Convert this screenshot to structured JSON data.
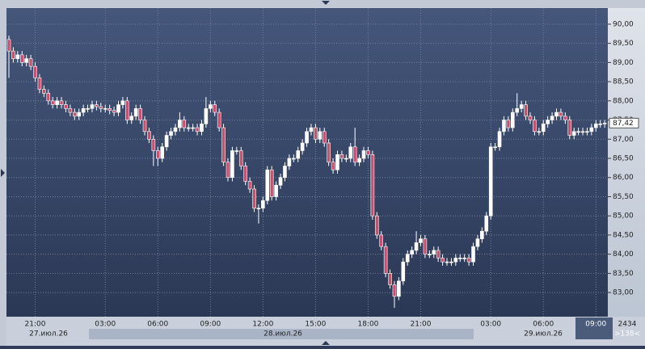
{
  "chart_data": {
    "type": "candlestick",
    "up_color": "#ffffff",
    "down_color": "#c8506e",
    "ylim": [
      82.37,
      90.42
    ],
    "yticks": [
      {
        "value": 83,
        "label": "83,00"
      },
      {
        "value": 83.5,
        "label": "83,50"
      },
      {
        "value": 84,
        "label": "84,00"
      },
      {
        "value": 84.5,
        "label": "84,50"
      },
      {
        "value": 85,
        "label": "85,00"
      },
      {
        "value": 85.5,
        "label": "85,50"
      },
      {
        "value": 86,
        "label": "86,00"
      },
      {
        "value": 86.5,
        "label": "86,50"
      },
      {
        "value": 87,
        "label": "87,00"
      },
      {
        "value": 87.5,
        "label": "87,50"
      },
      {
        "value": 88,
        "label": "88,00"
      },
      {
        "value": 88.5,
        "label": "88,50"
      },
      {
        "value": 89,
        "label": "89,00"
      },
      {
        "value": 89.5,
        "label": "89,50"
      },
      {
        "value": 90,
        "label": "90,00"
      }
    ],
    "grid": true,
    "current_price": {
      "value": 87.42,
      "label": "87,42"
    },
    "dates": [
      "27.июл.26",
      "28.июл.26",
      "29.июл.26"
    ],
    "footer_right": [
      "2434",
      ">138<"
    ],
    "categories": [
      null,
      null,
      null,
      null,
      null,
      null,
      "21:00",
      null,
      null,
      null,
      null,
      null,
      null,
      null,
      null,
      null,
      null,
      null,
      null,
      null,
      null,
      null,
      "03:00",
      null,
      null,
      null,
      null,
      null,
      null,
      null,
      null,
      null,
      null,
      null,
      "06:00",
      null,
      null,
      null,
      null,
      null,
      null,
      null,
      null,
      null,
      null,
      null,
      "09:00",
      null,
      null,
      null,
      null,
      null,
      null,
      null,
      null,
      null,
      null,
      null,
      "12:00",
      null,
      null,
      null,
      null,
      null,
      null,
      null,
      null,
      null,
      null,
      null,
      "15:00",
      null,
      null,
      null,
      null,
      null,
      null,
      null,
      null,
      null,
      null,
      null,
      "18:00",
      null,
      null,
      null,
      null,
      null,
      null,
      null,
      null,
      null,
      null,
      null,
      "21:00",
      null,
      null,
      null,
      null,
      null,
      null,
      null,
      null,
      null,
      null,
      null,
      null,
      null,
      null,
      null,
      "03:00",
      null,
      null,
      null,
      null,
      null,
      null,
      null,
      null,
      null,
      null,
      null,
      "06:00",
      null,
      null,
      null,
      null,
      null,
      null,
      null,
      null,
      null,
      null,
      null,
      "09:00",
      null,
      null
    ],
    "open": [
      89.6,
      89.3,
      89.1,
      89.2,
      89.0,
      89.1,
      88.9,
      88.6,
      88.3,
      88.2,
      88.0,
      87.9,
      88.0,
      87.9,
      87.8,
      87.7,
      87.6,
      87.7,
      87.8,
      87.8,
      87.9,
      87.85,
      87.8,
      87.8,
      87.75,
      87.7,
      87.9,
      88.0,
      87.5,
      87.6,
      87.8,
      87.5,
      87.2,
      87.0,
      86.7,
      86.5,
      86.8,
      87.1,
      87.2,
      87.3,
      87.5,
      87.3,
      87.3,
      87.3,
      87.2,
      87.4,
      87.8,
      87.9,
      87.7,
      87.3,
      86.4,
      86.0,
      86.7,
      86.7,
      86.3,
      85.9,
      85.7,
      85.2,
      85.2,
      85.4,
      86.2,
      85.5,
      85.8,
      86.0,
      86.3,
      86.5,
      86.5,
      86.7,
      86.9,
      87.2,
      87.3,
      87.0,
      87.2,
      86.9,
      86.4,
      86.2,
      86.6,
      86.5,
      86.5,
      86.8,
      86.4,
      86.5,
      86.7,
      86.6,
      85.0,
      84.5,
      84.2,
      83.5,
      83.2,
      82.9,
      83.3,
      83.8,
      84.0,
      84.1,
      84.3,
      84.4,
      84.0,
      84.0,
      84.1,
      83.9,
      83.8,
      83.8,
      83.8,
      83.9,
      83.9,
      83.9,
      83.8,
      84.2,
      84.4,
      84.6,
      85.0,
      86.8,
      86.8,
      87.2,
      87.5,
      87.3,
      87.7,
      87.8,
      87.9,
      87.6,
      87.5,
      87.2,
      87.2,
      87.4,
      87.5,
      87.6,
      87.7,
      87.6,
      87.5,
      87.1,
      87.2,
      87.2,
      87.2,
      87.2,
      87.3,
      87.4,
      87.4
    ],
    "high": [
      89.7,
      89.4,
      89.3,
      89.3,
      89.2,
      89.2,
      89.0,
      88.7,
      88.4,
      88.3,
      88.1,
      88.1,
      88.1,
      88.0,
      87.9,
      87.8,
      87.8,
      87.9,
      87.9,
      88.0,
      88.0,
      87.95,
      87.9,
      87.9,
      87.85,
      88.0,
      88.1,
      88.1,
      87.7,
      87.9,
      87.9,
      87.6,
      87.3,
      87.1,
      86.8,
      86.9,
      87.2,
      87.3,
      87.4,
      87.7,
      87.6,
      87.4,
      87.4,
      87.4,
      87.5,
      88.1,
      88.0,
      88.0,
      87.8,
      87.4,
      86.5,
      86.8,
      86.8,
      86.8,
      86.4,
      86.0,
      85.8,
      85.3,
      85.5,
      86.3,
      86.3,
      85.9,
      86.1,
      86.4,
      86.6,
      86.6,
      86.8,
      87.0,
      87.3,
      87.4,
      87.4,
      87.3,
      87.3,
      87.0,
      86.5,
      86.7,
      86.7,
      86.6,
      86.9,
      87.3,
      86.6,
      86.8,
      86.8,
      86.7,
      85.1,
      84.6,
      84.3,
      83.6,
      83.3,
      83.4,
      83.9,
      84.1,
      84.2,
      84.6,
      84.5,
      84.5,
      84.1,
      84.2,
      84.2,
      84.0,
      83.9,
      83.9,
      84.0,
      84.0,
      84.0,
      84.0,
      84.3,
      84.5,
      84.7,
      85.1,
      86.9,
      86.9,
      87.3,
      87.6,
      87.6,
      87.8,
      88.2,
      88.0,
      88.0,
      87.7,
      87.6,
      87.3,
      87.5,
      87.6,
      87.7,
      87.8,
      87.8,
      87.7,
      87.6,
      87.3,
      87.3,
      87.3,
      87.3,
      87.4,
      87.5,
      87.5,
      87.5
    ],
    "low": [
      88.6,
      89.0,
      89.0,
      88.9,
      88.9,
      88.8,
      88.5,
      88.2,
      88.1,
      87.9,
      87.8,
      87.8,
      87.8,
      87.7,
      87.6,
      87.5,
      87.5,
      87.6,
      87.7,
      87.7,
      87.75,
      87.7,
      87.7,
      87.65,
      87.6,
      87.6,
      87.8,
      87.4,
      87.4,
      87.5,
      87.4,
      87.1,
      86.9,
      86.3,
      86.3,
      86.4,
      86.7,
      87.0,
      87.1,
      87.2,
      87.2,
      87.2,
      87.2,
      87.1,
      87.1,
      87.3,
      87.7,
      87.6,
      87.2,
      86.3,
      85.9,
      85.9,
      86.6,
      86.2,
      85.8,
      85.6,
      85.1,
      84.8,
      85.1,
      85.3,
      85.4,
      85.4,
      85.7,
      85.9,
      86.2,
      86.4,
      86.4,
      86.6,
      86.8,
      87.1,
      86.9,
      86.9,
      86.8,
      86.3,
      86.1,
      86.1,
      86.4,
      86.4,
      86.4,
      86.3,
      86.3,
      86.4,
      86.5,
      84.9,
      84.4,
      84.1,
      83.4,
      83.1,
      82.6,
      82.8,
      83.2,
      83.7,
      83.9,
      84.0,
      84.2,
      83.9,
      83.9,
      83.9,
      83.8,
      83.7,
      83.7,
      83.7,
      83.7,
      83.8,
      83.8,
      83.7,
      83.7,
      84.1,
      84.3,
      84.5,
      84.9,
      86.7,
      86.7,
      87.1,
      87.2,
      87.2,
      87.6,
      87.7,
      87.5,
      87.4,
      87.1,
      87.1,
      87.1,
      87.3,
      87.4,
      87.5,
      87.5,
      87.4,
      87.0,
      87.0,
      87.1,
      87.1,
      87.1,
      87.1,
      87.2,
      87.3,
      87.3
    ],
    "close": [
      89.3,
      89.1,
      89.2,
      89.0,
      89.1,
      88.9,
      88.6,
      88.3,
      88.2,
      88.0,
      87.9,
      88.0,
      87.9,
      87.8,
      87.7,
      87.6,
      87.7,
      87.8,
      87.8,
      87.9,
      87.85,
      87.8,
      87.8,
      87.75,
      87.7,
      87.9,
      88.0,
      87.5,
      87.6,
      87.8,
      87.5,
      87.2,
      87.0,
      86.7,
      86.5,
      86.8,
      87.1,
      87.2,
      87.3,
      87.5,
      87.3,
      87.3,
      87.3,
      87.2,
      87.4,
      87.8,
      87.9,
      87.7,
      87.3,
      86.4,
      86.0,
      86.7,
      86.7,
      86.3,
      85.9,
      85.7,
      85.2,
      85.2,
      85.4,
      86.2,
      85.5,
      85.8,
      86.0,
      86.3,
      86.5,
      86.5,
      86.7,
      86.9,
      87.2,
      87.3,
      87.0,
      87.2,
      86.9,
      86.4,
      86.2,
      86.6,
      86.5,
      86.5,
      86.8,
      86.4,
      86.5,
      86.7,
      86.6,
      85.0,
      84.5,
      84.2,
      83.5,
      83.2,
      82.9,
      83.3,
      83.8,
      84.0,
      84.1,
      84.3,
      84.4,
      84.0,
      84.0,
      84.1,
      83.9,
      83.8,
      83.8,
      83.8,
      83.9,
      83.9,
      83.9,
      83.8,
      84.2,
      84.4,
      84.6,
      85.0,
      86.8,
      86.8,
      87.2,
      87.5,
      87.3,
      87.7,
      87.8,
      87.9,
      87.6,
      87.5,
      87.2,
      87.2,
      87.4,
      87.5,
      87.6,
      87.7,
      87.6,
      87.5,
      87.1,
      87.2,
      87.2,
      87.2,
      87.2,
      87.3,
      87.4,
      87.4,
      87.42
    ]
  }
}
